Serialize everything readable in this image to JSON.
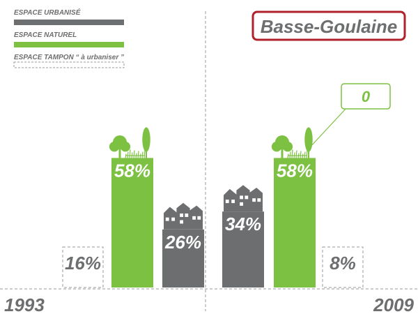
{
  "colors": {
    "urbanise": "#6d6e70",
    "naturel": "#7dc142",
    "tampon_border": "#9a9a9a",
    "title_border": "#b0222a",
    "axis": "#9a9a9a",
    "text_gray": "#6d6e70",
    "white": "#ffffff"
  },
  "chart_data": {
    "type": "bar",
    "title": "Basse-Goulaine",
    "legend": {
      "placement": "top-left",
      "items": [
        {
          "key": "urbanise",
          "label": "ESPACE URBANISÉ",
          "style": "solid-gray"
        },
        {
          "key": "naturel",
          "label": "ESPACE NATUREL",
          "style": "solid-green"
        },
        {
          "key": "tampon",
          "label": "ESPACE TAMPON “ à urbaniser ”",
          "style": "dashed-box"
        }
      ]
    },
    "categories": [
      "1993",
      "2009"
    ],
    "series": [
      {
        "name": "ESPACE TAMPON “ à urbaniser ”",
        "key": "tampon",
        "values": [
          16,
          8
        ],
        "labels": [
          "16%",
          "8%"
        ]
      },
      {
        "name": "ESPACE NATUREL",
        "key": "naturel",
        "values": [
          58,
          58
        ],
        "labels": [
          "58%",
          "58%"
        ]
      },
      {
        "name": "ESPACE URBANISÉ",
        "key": "urbanise",
        "values": [
          26,
          34
        ],
        "labels": [
          "26%",
          "34%"
        ]
      }
    ],
    "callout": {
      "category": "2009",
      "value": "0"
    },
    "ylim": [
      0,
      100
    ],
    "grid": false
  }
}
